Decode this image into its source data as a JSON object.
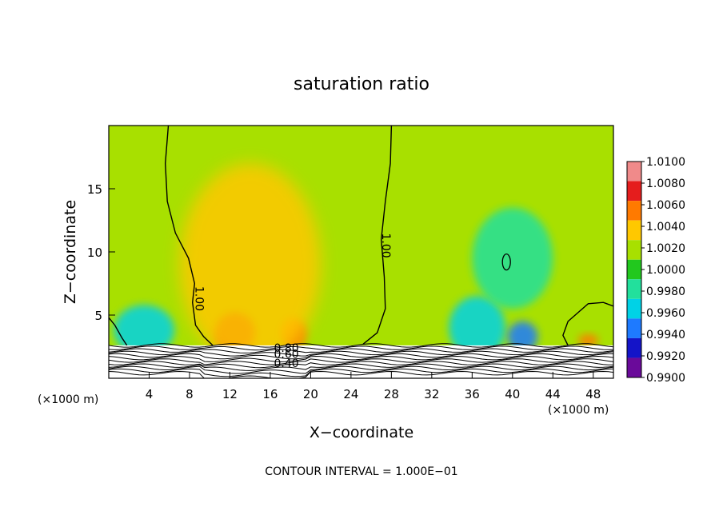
{
  "chart_data": {
    "type": "heatmap",
    "title": "saturation ratio",
    "xlabel": "X−coordinate",
    "ylabel": "Z−coordinate",
    "x_unit_left": "(×1000 m)",
    "x_unit_right": "(×1000 m)",
    "xlim": [
      0,
      50
    ],
    "ylim": [
      0,
      20
    ],
    "x_ticks": [
      4,
      8,
      12,
      16,
      20,
      24,
      28,
      32,
      36,
      40,
      44,
      48
    ],
    "y_ticks": [
      5,
      10,
      15
    ],
    "contour_interval_text": "CONTOUR INTERVAL = 1.000E−01",
    "contour_labels": [
      {
        "text": "1.00",
        "x": 8.6,
        "z": 6.3,
        "rot": 90
      },
      {
        "text": "1.00",
        "x": 27.1,
        "z": 10.5,
        "rot": 90
      },
      {
        "text": "0.80",
        "x": 17.6,
        "z": 2.1,
        "rot": 0
      },
      {
        "text": "0.60",
        "x": 17.6,
        "z": 1.6,
        "rot": 0
      },
      {
        "text": "0.40",
        "x": 17.6,
        "z": 0.9,
        "rot": 0
      }
    ],
    "colorbar": {
      "labels": [
        "1.0100",
        "1.0080",
        "1.0060",
        "1.0040",
        "1.0020",
        "1.0000",
        "0.9980",
        "0.9960",
        "0.9940",
        "0.9920",
        "0.9900"
      ],
      "colors": [
        "#f08a8a",
        "#e51d1d",
        "#ff7a00",
        "#ffc800",
        "#a8e000",
        "#22c81e",
        "#22e09c",
        "#00d2e6",
        "#1e7aff",
        "#1414c8",
        "#6a0a9a"
      ]
    },
    "background_value": 1.0005,
    "features": [
      {
        "kind": "blob",
        "x": 12.5,
        "z": 3.6,
        "rx": 2.0,
        "rz": 1.6,
        "value": 1.0062
      },
      {
        "kind": "blob",
        "x": 18.3,
        "z": 3.5,
        "rx": 1.3,
        "rz": 1.3,
        "value": 1.0058
      },
      {
        "kind": "blob",
        "x": 3.5,
        "z": 3.8,
        "rx": 3.0,
        "rz": 2.0,
        "value": 0.9955
      },
      {
        "kind": "blob",
        "x": 36.5,
        "z": 4.0,
        "rx": 2.8,
        "rz": 2.5,
        "value": 0.9957
      },
      {
        "kind": "blob",
        "x": 41.0,
        "z": 3.3,
        "rx": 1.5,
        "rz": 1.2,
        "value": 0.9925
      },
      {
        "kind": "blob",
        "x": 14.0,
        "z": 9.0,
        "rx": 7.0,
        "rz": 8.0,
        "value": 1.0024
      },
      {
        "kind": "blob",
        "x": 40.0,
        "z": 9.5,
        "rx": 4.0,
        "rz": 4.0,
        "value": 0.9978
      },
      {
        "kind": "blob",
        "x": 47.5,
        "z": 3.0,
        "rx": 1.0,
        "rz": 0.5,
        "value": 1.0045
      }
    ],
    "surface_contours_count": 12
  }
}
